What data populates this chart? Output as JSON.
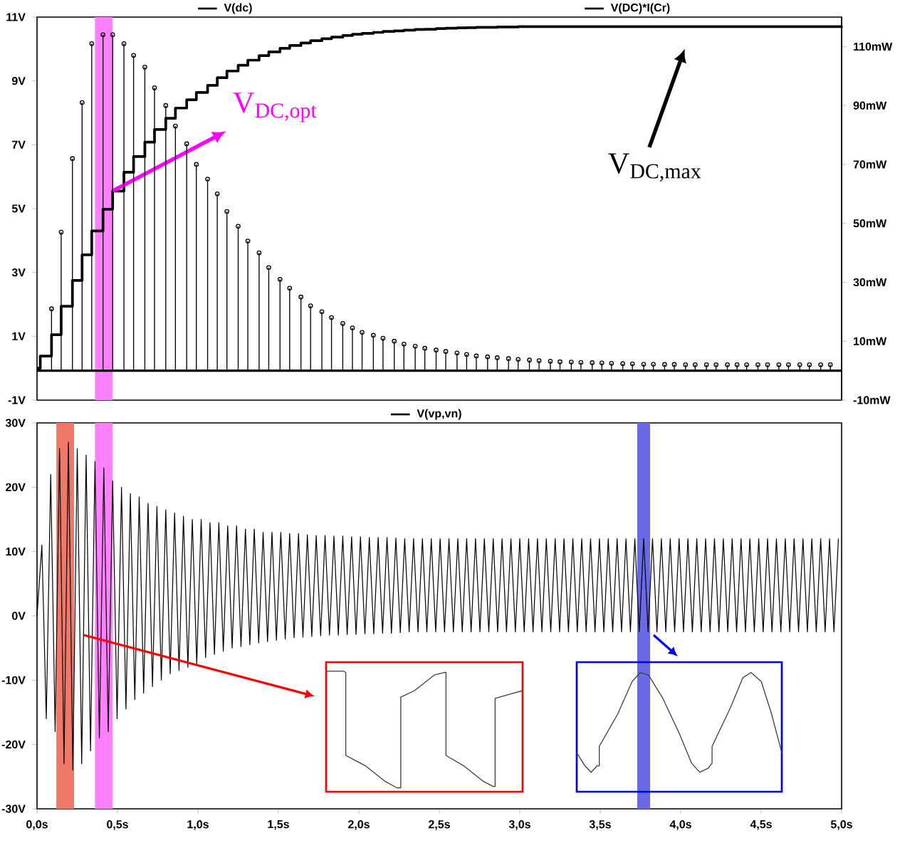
{
  "chart_data": [
    {
      "type": "step",
      "xlim": [
        0,
        5
      ],
      "ylim": [
        -1,
        11
      ],
      "yticks": [
        {
          "value": -1,
          "label": "-1V"
        },
        {
          "value": 1,
          "label": "1V"
        },
        {
          "value": 3,
          "label": "3V"
        },
        {
          "value": 5,
          "label": "5V"
        },
        {
          "value": 7,
          "label": "7V"
        },
        {
          "value": 9,
          "label": "9V"
        },
        {
          "value": 11,
          "label": "11V"
        }
      ],
      "y2lim": [
        -10,
        120
      ],
      "y2ticks": [
        {
          "value": -10,
          "label": "-10mW"
        },
        {
          "value": 10,
          "label": "10mW"
        },
        {
          "value": 30,
          "label": "30mW"
        },
        {
          "value": 50,
          "label": "50mW"
        },
        {
          "value": 70,
          "label": "70mW"
        },
        {
          "value": 90,
          "label": "90mW"
        },
        {
          "value": 110,
          "label": "110mW"
        }
      ],
      "tick_labels": "y",
      "legend": "top",
      "bands": [
        {
          "axis": "x",
          "from": 0.36,
          "to": 0.47,
          "color": "#ff80ff"
        }
      ],
      "annotations": [
        "V$_{DC,opt}$",
        "V$_{DC,max}$"
      ],
      "series": [
        {
          "name": "V(dc)",
          "type": "step",
          "color": "#000000",
          "x": [
            0,
            0.02,
            0.09,
            0.15,
            0.22,
            0.28,
            0.34,
            0.41,
            0.47,
            0.54,
            0.6,
            0.67,
            0.73,
            0.8,
            0.86,
            0.93,
            0.99,
            1.06,
            1.12,
            1.18,
            1.25,
            1.31,
            1.38,
            1.44,
            1.51,
            1.57,
            1.64,
            1.7,
            1.77,
            1.83,
            1.9,
            1.96,
            2.02,
            2.09,
            2.15,
            2.22,
            2.28,
            2.35,
            2.41,
            2.48,
            2.54,
            2.61,
            2.67,
            2.73,
            2.8,
            2.86,
            2.93,
            2.99,
            5.0
          ],
          "values": [
            0,
            0.38,
            1.05,
            1.94,
            2.75,
            3.55,
            4.3,
            4.98,
            5.55,
            6.14,
            6.63,
            7.08,
            7.48,
            7.83,
            8.15,
            8.41,
            8.64,
            8.86,
            9.1,
            9.31,
            9.49,
            9.65,
            9.79,
            9.91,
            10.02,
            10.11,
            10.19,
            10.26,
            10.32,
            10.37,
            10.42,
            10.46,
            10.49,
            10.52,
            10.55,
            10.57,
            10.59,
            10.61,
            10.62,
            10.64,
            10.65,
            10.66,
            10.67,
            10.68,
            10.68,
            10.69,
            10.69,
            10.7,
            10.72
          ]
        },
        {
          "name": "V(DC)*I(Cr)",
          "type": "lollipop",
          "axis": "y2",
          "color": "#000000",
          "marker": "circle",
          "x": [
            0.09,
            0.15,
            0.22,
            0.28,
            0.34,
            0.41,
            0.47,
            0.54,
            0.6,
            0.67,
            0.73,
            0.8,
            0.86,
            0.93,
            0.99,
            1.06,
            1.12,
            1.18,
            1.25,
            1.31,
            1.38,
            1.44,
            1.51,
            1.57,
            1.64,
            1.7,
            1.77,
            1.83,
            1.9,
            1.96,
            2.02,
            2.09,
            2.15,
            2.22,
            2.28,
            2.35,
            2.41,
            2.48,
            2.54,
            2.61,
            2.67,
            2.73,
            2.8,
            2.86,
            2.93,
            2.99,
            3.06,
            3.12,
            3.19,
            3.25,
            3.32,
            3.38,
            3.45,
            3.51,
            3.57,
            3.64,
            3.7,
            3.77,
            3.83,
            3.9,
            3.96,
            4.03,
            4.09,
            4.16,
            4.22,
            4.29,
            4.35,
            4.41,
            4.48,
            4.54,
            4.61,
            4.67,
            4.74,
            4.8,
            4.87,
            4.93
          ],
          "values": [
            21,
            47,
            72,
            91,
            111,
            114,
            114,
            111,
            107,
            103,
            96,
            90,
            83,
            77,
            70,
            65,
            60,
            54,
            49,
            44,
            40,
            35,
            31,
            28,
            25,
            22,
            20,
            18,
            16,
            14.5,
            13,
            12,
            11,
            10,
            9,
            8.3,
            7.6,
            7,
            6.5,
            6,
            5.5,
            5,
            4.7,
            4.4,
            4.1,
            3.8,
            3.6,
            3.4,
            3.2,
            3,
            2.9,
            2.8,
            2.7,
            2.6,
            2.5,
            2.4,
            2.3,
            2.2,
            2.2,
            2.1,
            2.1,
            2,
            2,
            2,
            2,
            2,
            2,
            2,
            2,
            2,
            2,
            2,
            2,
            2,
            2,
            2
          ]
        }
      ]
    },
    {
      "type": "line",
      "xlim": [
        0,
        5
      ],
      "ylim": [
        -30,
        30
      ],
      "xticks": [
        {
          "value": 0,
          "label": "0,0s"
        },
        {
          "value": 0.5,
          "label": "0,5s"
        },
        {
          "value": 1,
          "label": "1,0s"
        },
        {
          "value": 1.5,
          "label": "1,5s"
        },
        {
          "value": 2,
          "label": "2,0s"
        },
        {
          "value": 2.5,
          "label": "2,5s"
        },
        {
          "value": 3,
          "label": "3,0s"
        },
        {
          "value": 3.5,
          "label": "3,5s"
        },
        {
          "value": 4,
          "label": "4,0s"
        },
        {
          "value": 4.5,
          "label": "4,5s"
        },
        {
          "value": 5,
          "label": "5,0s"
        }
      ],
      "yticks": [
        {
          "value": -30,
          "label": "-30V"
        },
        {
          "value": -20,
          "label": "-20V"
        },
        {
          "value": -10,
          "label": "-10V"
        },
        {
          "value": 0,
          "label": "0V"
        },
        {
          "value": 10,
          "label": "10V"
        },
        {
          "value": 20,
          "label": "20V"
        },
        {
          "value": 30,
          "label": "30V"
        }
      ],
      "legend": "top",
      "bands": [
        {
          "axis": "x",
          "from": 0.36,
          "to": 0.47,
          "color": "#ff80ff"
        },
        {
          "axis": "x",
          "from": 0.12,
          "to": 0.23,
          "color": "#f07868"
        },
        {
          "axis": "x",
          "from": 3.73,
          "to": 3.81,
          "color": "#6a6ae8"
        }
      ],
      "series": [
        {
          "name": "V(vp,vn)",
          "color": "#000000",
          "x": [
            0,
            0.03,
            0.0575,
            0.085,
            0.1125,
            0.14,
            0.1675,
            0.195,
            0.2225,
            0.25,
            0.2775,
            0.305,
            0.3325,
            0.36,
            0.3875,
            0.415,
            0.4425,
            0.47,
            0.4975,
            0.525,
            0.5525,
            0.58,
            0.6075,
            0.635,
            0.6625,
            0.69,
            0.7175,
            0.745,
            0.7725,
            0.8,
            0.8275,
            0.855,
            0.8825,
            0.91,
            0.9375,
            0.965,
            0.9925,
            1.02,
            1.0475,
            1.075,
            1.1025,
            1.13,
            1.1575,
            1.185,
            1.2125,
            1.24,
            1.2675,
            1.295,
            1.3225,
            1.35,
            1.3775,
            1.405,
            1.4325,
            1.46,
            1.4875,
            1.515,
            1.5425,
            1.57,
            1.5975,
            1.625,
            1.6525,
            1.68,
            1.7075,
            1.735,
            1.7625,
            1.79,
            1.8175,
            1.845,
            1.8725,
            1.9,
            1.9275,
            1.955,
            1.9825,
            2.01,
            2.0375,
            2.065,
            2.0925,
            2.12,
            2.1475,
            2.175,
            2.2025,
            2.23,
            2.2575,
            2.285,
            2.3125,
            2.34,
            2.3675,
            2.395,
            2.4225,
            2.45,
            2.4775,
            2.505,
            2.5325,
            2.56,
            2.5875,
            2.615,
            2.6425,
            2.67,
            2.6975,
            2.725,
            2.7525,
            2.78,
            2.8075,
            2.835,
            2.8625,
            2.89,
            2.9175,
            2.945,
            2.9725,
            3.0,
            3.0275,
            3.055,
            3.0825,
            3.11,
            3.1375,
            3.165,
            3.1925,
            3.22,
            3.2475,
            3.275,
            3.3025,
            3.33,
            3.3575,
            3.385,
            3.4125,
            3.44,
            3.4675,
            3.495,
            3.5225,
            3.55,
            3.5775,
            3.605,
            3.6325,
            3.66,
            3.6875,
            3.715,
            3.7425,
            3.77,
            3.7975,
            3.825,
            3.8525,
            3.88,
            3.9075,
            3.935,
            3.9625,
            3.99,
            4.0175,
            4.045,
            4.0725,
            4.1,
            4.1275,
            4.155,
            4.1825,
            4.21,
            4.2375,
            4.265,
            4.2925,
            4.32,
            4.3475,
            4.375,
            4.4025,
            4.43,
            4.4575,
            4.485,
            4.5125,
            4.54,
            4.5675,
            4.595,
            4.6225,
            4.65,
            4.6775,
            4.705,
            4.7325,
            4.76,
            4.7875,
            4.815,
            4.8425,
            4.87,
            4.8975,
            4.925,
            4.9525,
            4.98
          ],
          "values": [
            0,
            11,
            -16,
            22,
            -18,
            26,
            -23,
            27,
            -24,
            26,
            -23,
            25,
            -21,
            24,
            -19,
            23,
            -18,
            21,
            -16,
            20,
            -14.5,
            19,
            -13,
            18.5,
            -12,
            17.5,
            -11,
            17,
            -10,
            16.5,
            -9,
            16,
            -8.5,
            15.5,
            -8,
            15,
            -7.5,
            15,
            -6.5,
            14.5,
            -6,
            14.5,
            -5.5,
            14,
            -5,
            14,
            -4.8,
            13.5,
            -4.5,
            13.5,
            -4.2,
            13,
            -4,
            13,
            -3.8,
            13,
            -3.6,
            12.8,
            -3.4,
            12.8,
            -3.3,
            12.6,
            -3.2,
            12.5,
            -3.1,
            12.5,
            -3,
            12.4,
            -3,
            12.4,
            -2.9,
            12.3,
            -2.9,
            12.3,
            -2.8,
            12.2,
            -2.8,
            12.2,
            -2.7,
            12.2,
            -2.7,
            12.1,
            -2.6,
            12,
            -2.5,
            12,
            -2.5,
            12,
            -2.5,
            12,
            -2.5,
            12,
            -2.5,
            12,
            -2.5,
            12,
            -2.5,
            12,
            -2.5,
            12,
            -2.5,
            12,
            -2.5,
            12,
            -2.5,
            12,
            -2.5,
            12,
            -2.5,
            12,
            -2.5,
            12,
            -2.5,
            12,
            -2.5,
            12,
            -2.5,
            12,
            -2.5,
            12,
            -2.5,
            12,
            -2.5,
            12,
            -2.5,
            12,
            -2.5,
            12,
            -2.5,
            12,
            -2.5,
            12,
            -2.5,
            12,
            -2.5,
            12,
            -2.5,
            12,
            -2.5,
            12,
            -2.5,
            12,
            -2.5,
            12,
            -2.5,
            12,
            -2.5,
            12,
            -2.5,
            12,
            -2.5,
            12,
            -2.5,
            12,
            -2.5,
            12,
            -2.5,
            12,
            -2.5,
            12,
            -2.5,
            12,
            -2.5,
            12,
            -2.5,
            12,
            -2.5,
            12,
            -2.5,
            12,
            -2.5,
            12,
            -2.5,
            12,
            -2.5,
            12,
            -2.5,
            12,
            -2.5,
            12,
            -2.5,
            12
          ]
        }
      ]
    }
  ]
}
